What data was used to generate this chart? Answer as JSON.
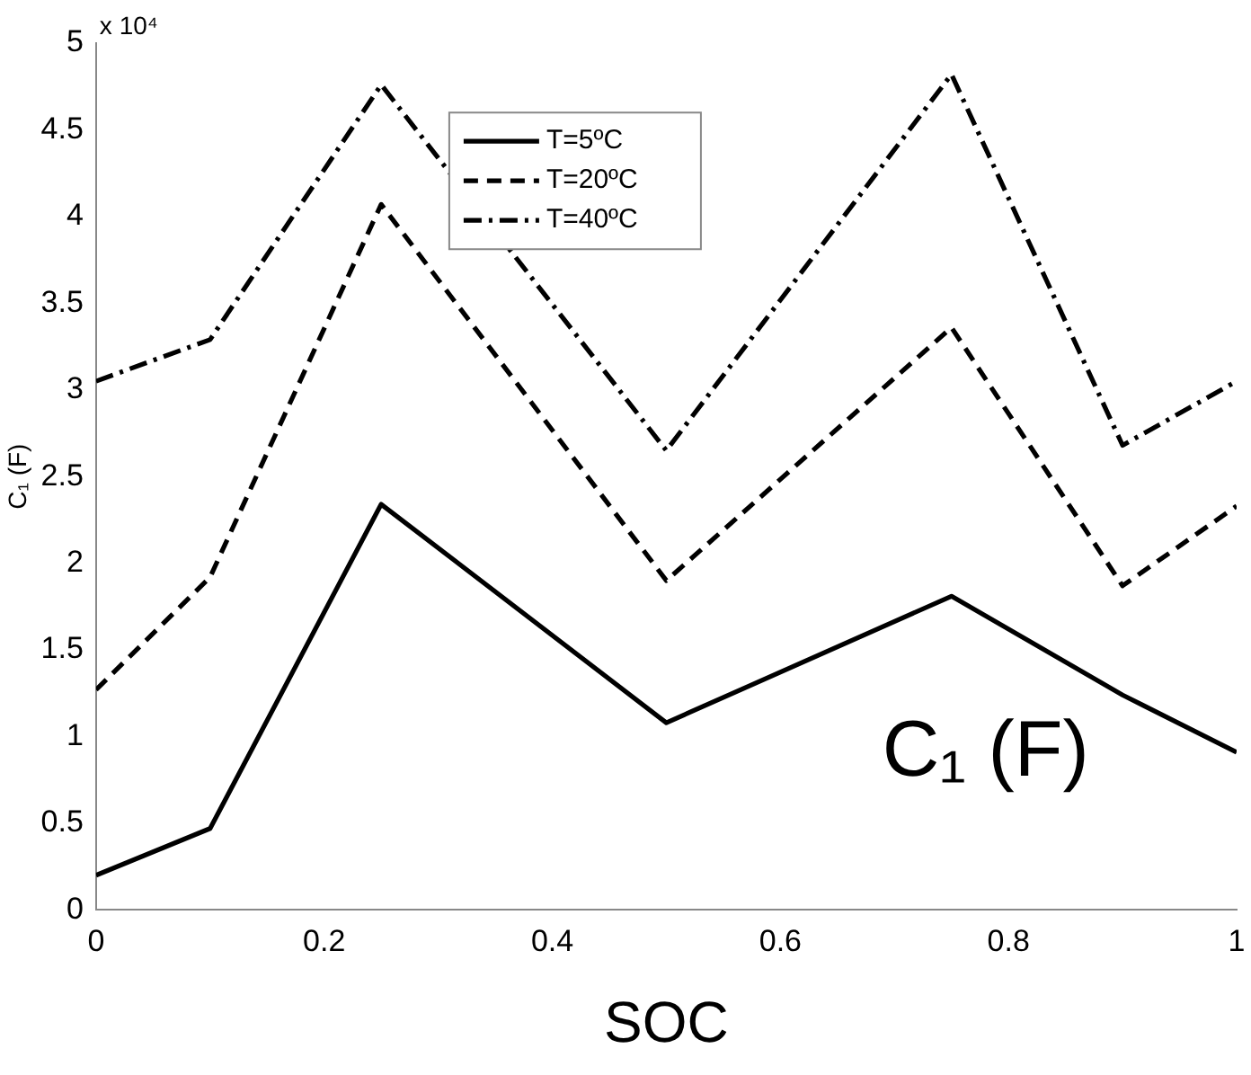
{
  "chart_data": {
    "type": "line",
    "xlabel": "SOC",
    "ylabel": "C₁ (F)",
    "x": [
      0,
      0.1,
      0.25,
      0.5,
      0.75,
      0.9,
      1
    ],
    "series": [
      {
        "name": "T=5ºC",
        "color": "#000000",
        "line_style": "solid",
        "values": [
          0.2,
          0.47,
          2.34,
          1.08,
          1.81,
          1.24,
          0.91
        ]
      },
      {
        "name": "T=20ºC",
        "color": "#000000",
        "line_style": "dashed",
        "values": [
          1.27,
          1.92,
          4.07,
          1.9,
          3.36,
          1.87,
          2.33
        ]
      },
      {
        "name": "T=40ºC",
        "color": "#000000",
        "line_style": "dashdot",
        "values": [
          3.05,
          3.29,
          4.76,
          2.65,
          4.82,
          2.68,
          3.05
        ]
      }
    ],
    "xlim": [
      0,
      1
    ],
    "xticks": [
      0,
      0.2,
      0.4,
      0.6,
      0.8,
      1
    ],
    "ylim": [
      0,
      5
    ],
    "yticks": [
      0,
      0.5,
      1,
      1.5,
      2,
      2.5,
      3,
      3.5,
      4,
      4.5,
      5
    ],
    "annotations": [
      "x 10⁴",
      "C₁ (F)"
    ],
    "grid": false,
    "legend": "top",
    "marker": "none"
  }
}
